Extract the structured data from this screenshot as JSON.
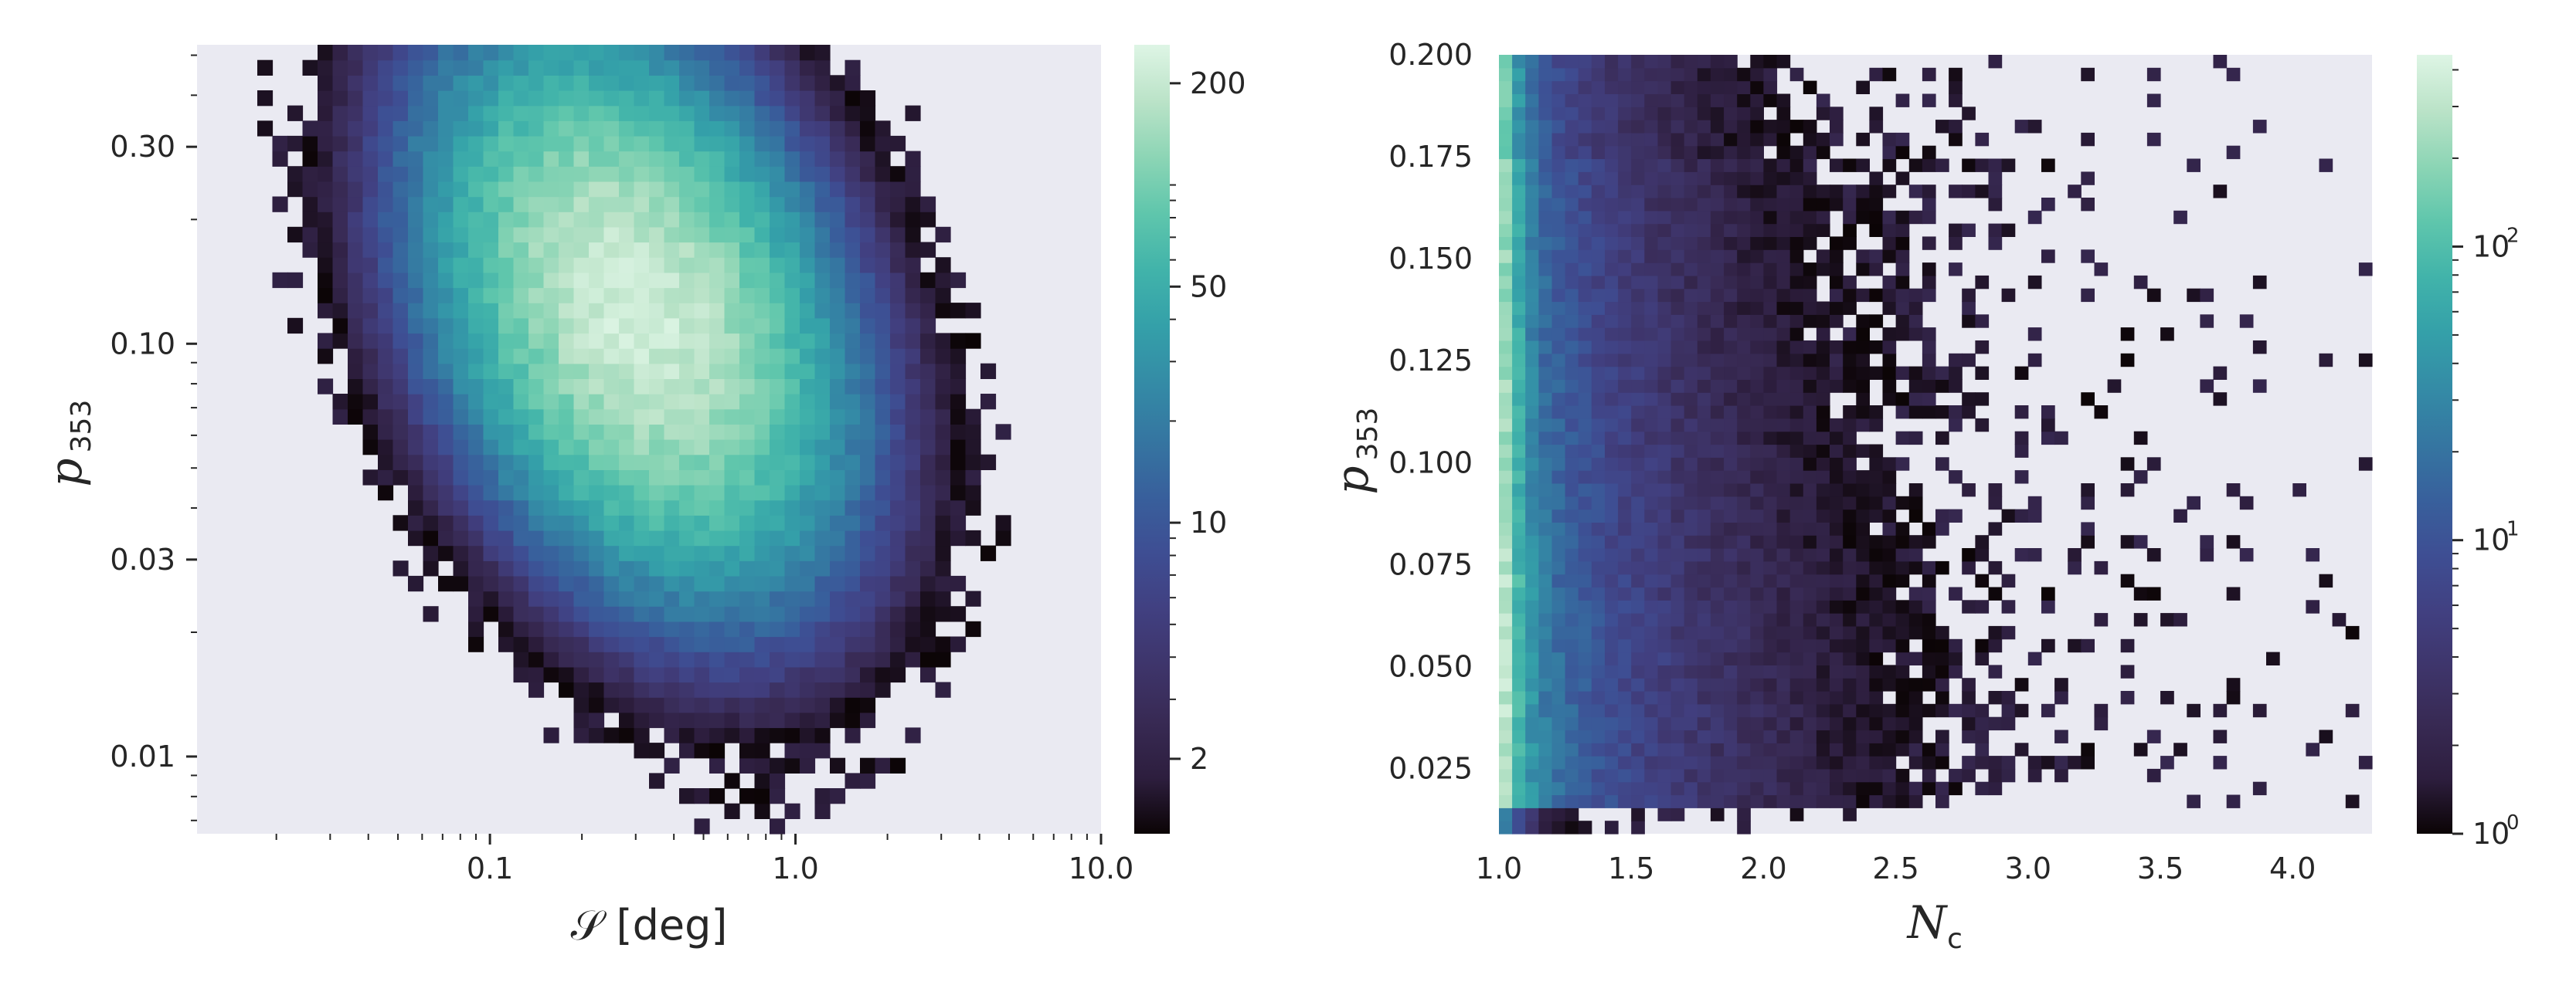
{
  "chart_data": [
    {
      "type": "heatmap",
      "panel": "left",
      "xlabel": "𝒮 [deg]",
      "ylabel_main": "p",
      "ylabel_sub": "353",
      "x_scale": "log",
      "y_scale": "log",
      "xlim": [
        0.011,
        10.0
      ],
      "ylim": [
        0.0065,
        0.53
      ],
      "xticks": [
        {
          "value": 0.1,
          "label": "0.1"
        },
        {
          "value": 1.0,
          "label": "1.0"
        },
        {
          "value": 10.0,
          "label": "10.0"
        }
      ],
      "yticks": [
        {
          "value": 0.01,
          "label": "0.01"
        },
        {
          "value": 0.03,
          "label": "0.03"
        },
        {
          "value": 0.1,
          "label": "0.10"
        },
        {
          "value": 0.3,
          "label": "0.30"
        }
      ],
      "colorbar": {
        "scale": "log",
        "range": [
          1.2,
          260
        ],
        "ticks": [
          {
            "value": 2,
            "label": "2"
          },
          {
            "value": 10,
            "label": "10"
          },
          {
            "value": 50,
            "label": "50"
          },
          {
            "value": 200,
            "label": "200"
          }
        ]
      },
      "density_model": {
        "description": "2D histogram of counts; correlated blob peaking near S≈0.3 deg, p≈0.12",
        "peak_x": 0.3,
        "peak_y": 0.12,
        "peak_count": 220,
        "correlation": "negative"
      },
      "grid": false
    },
    {
      "type": "heatmap",
      "panel": "right",
      "xlabel_main": "N",
      "xlabel_sub": "c",
      "ylabel_main": "p",
      "ylabel_sub": "353",
      "x_scale": "linear",
      "y_scale": "linear",
      "xlim": [
        1.0,
        4.3
      ],
      "ylim": [
        0.009,
        0.2
      ],
      "xticks": [
        {
          "value": 1.0,
          "label": "1.0"
        },
        {
          "value": 1.5,
          "label": "1.5"
        },
        {
          "value": 2.0,
          "label": "2.0"
        },
        {
          "value": 2.5,
          "label": "2.5"
        },
        {
          "value": 3.0,
          "label": "3.0"
        },
        {
          "value": 3.5,
          "label": "3.5"
        },
        {
          "value": 4.0,
          "label": "4.0"
        }
      ],
      "yticks": [
        {
          "value": 0.025,
          "label": "0.025"
        },
        {
          "value": 0.05,
          "label": "0.050"
        },
        {
          "value": 0.075,
          "label": "0.075"
        },
        {
          "value": 0.1,
          "label": "0.100"
        },
        {
          "value": 0.125,
          "label": "0.125"
        },
        {
          "value": 0.15,
          "label": "0.150"
        },
        {
          "value": 0.175,
          "label": "0.175"
        },
        {
          "value": 0.2,
          "label": "0.200"
        }
      ],
      "colorbar": {
        "scale": "log",
        "range": [
          1,
          450
        ],
        "ticks": [
          {
            "value": 1,
            "base": "10",
            "exp": "0"
          },
          {
            "value": 10,
            "base": "10",
            "exp": "1"
          },
          {
            "value": 100,
            "base": "10",
            "exp": "2"
          }
        ]
      },
      "density_model": {
        "description": "2D histogram of counts; strongest at N_c = 1.0, decaying toward larger N_c",
        "peak_x": 1.0,
        "peak_count": 450
      },
      "grid": false
    }
  ],
  "colors": {
    "axes_background": "#eaeaf2",
    "text": "#262626",
    "colormap_mako": [
      "#0b0405",
      "#2d1e3e",
      "#382a54",
      "#3e356b",
      "#414081",
      "#3e4e93",
      "#38609c",
      "#3576a1",
      "#348ba6",
      "#34a0a9",
      "#41b3aa",
      "#5fc6ac",
      "#8cd5b5",
      "#bbe3c8",
      "#def5e5"
    ]
  }
}
